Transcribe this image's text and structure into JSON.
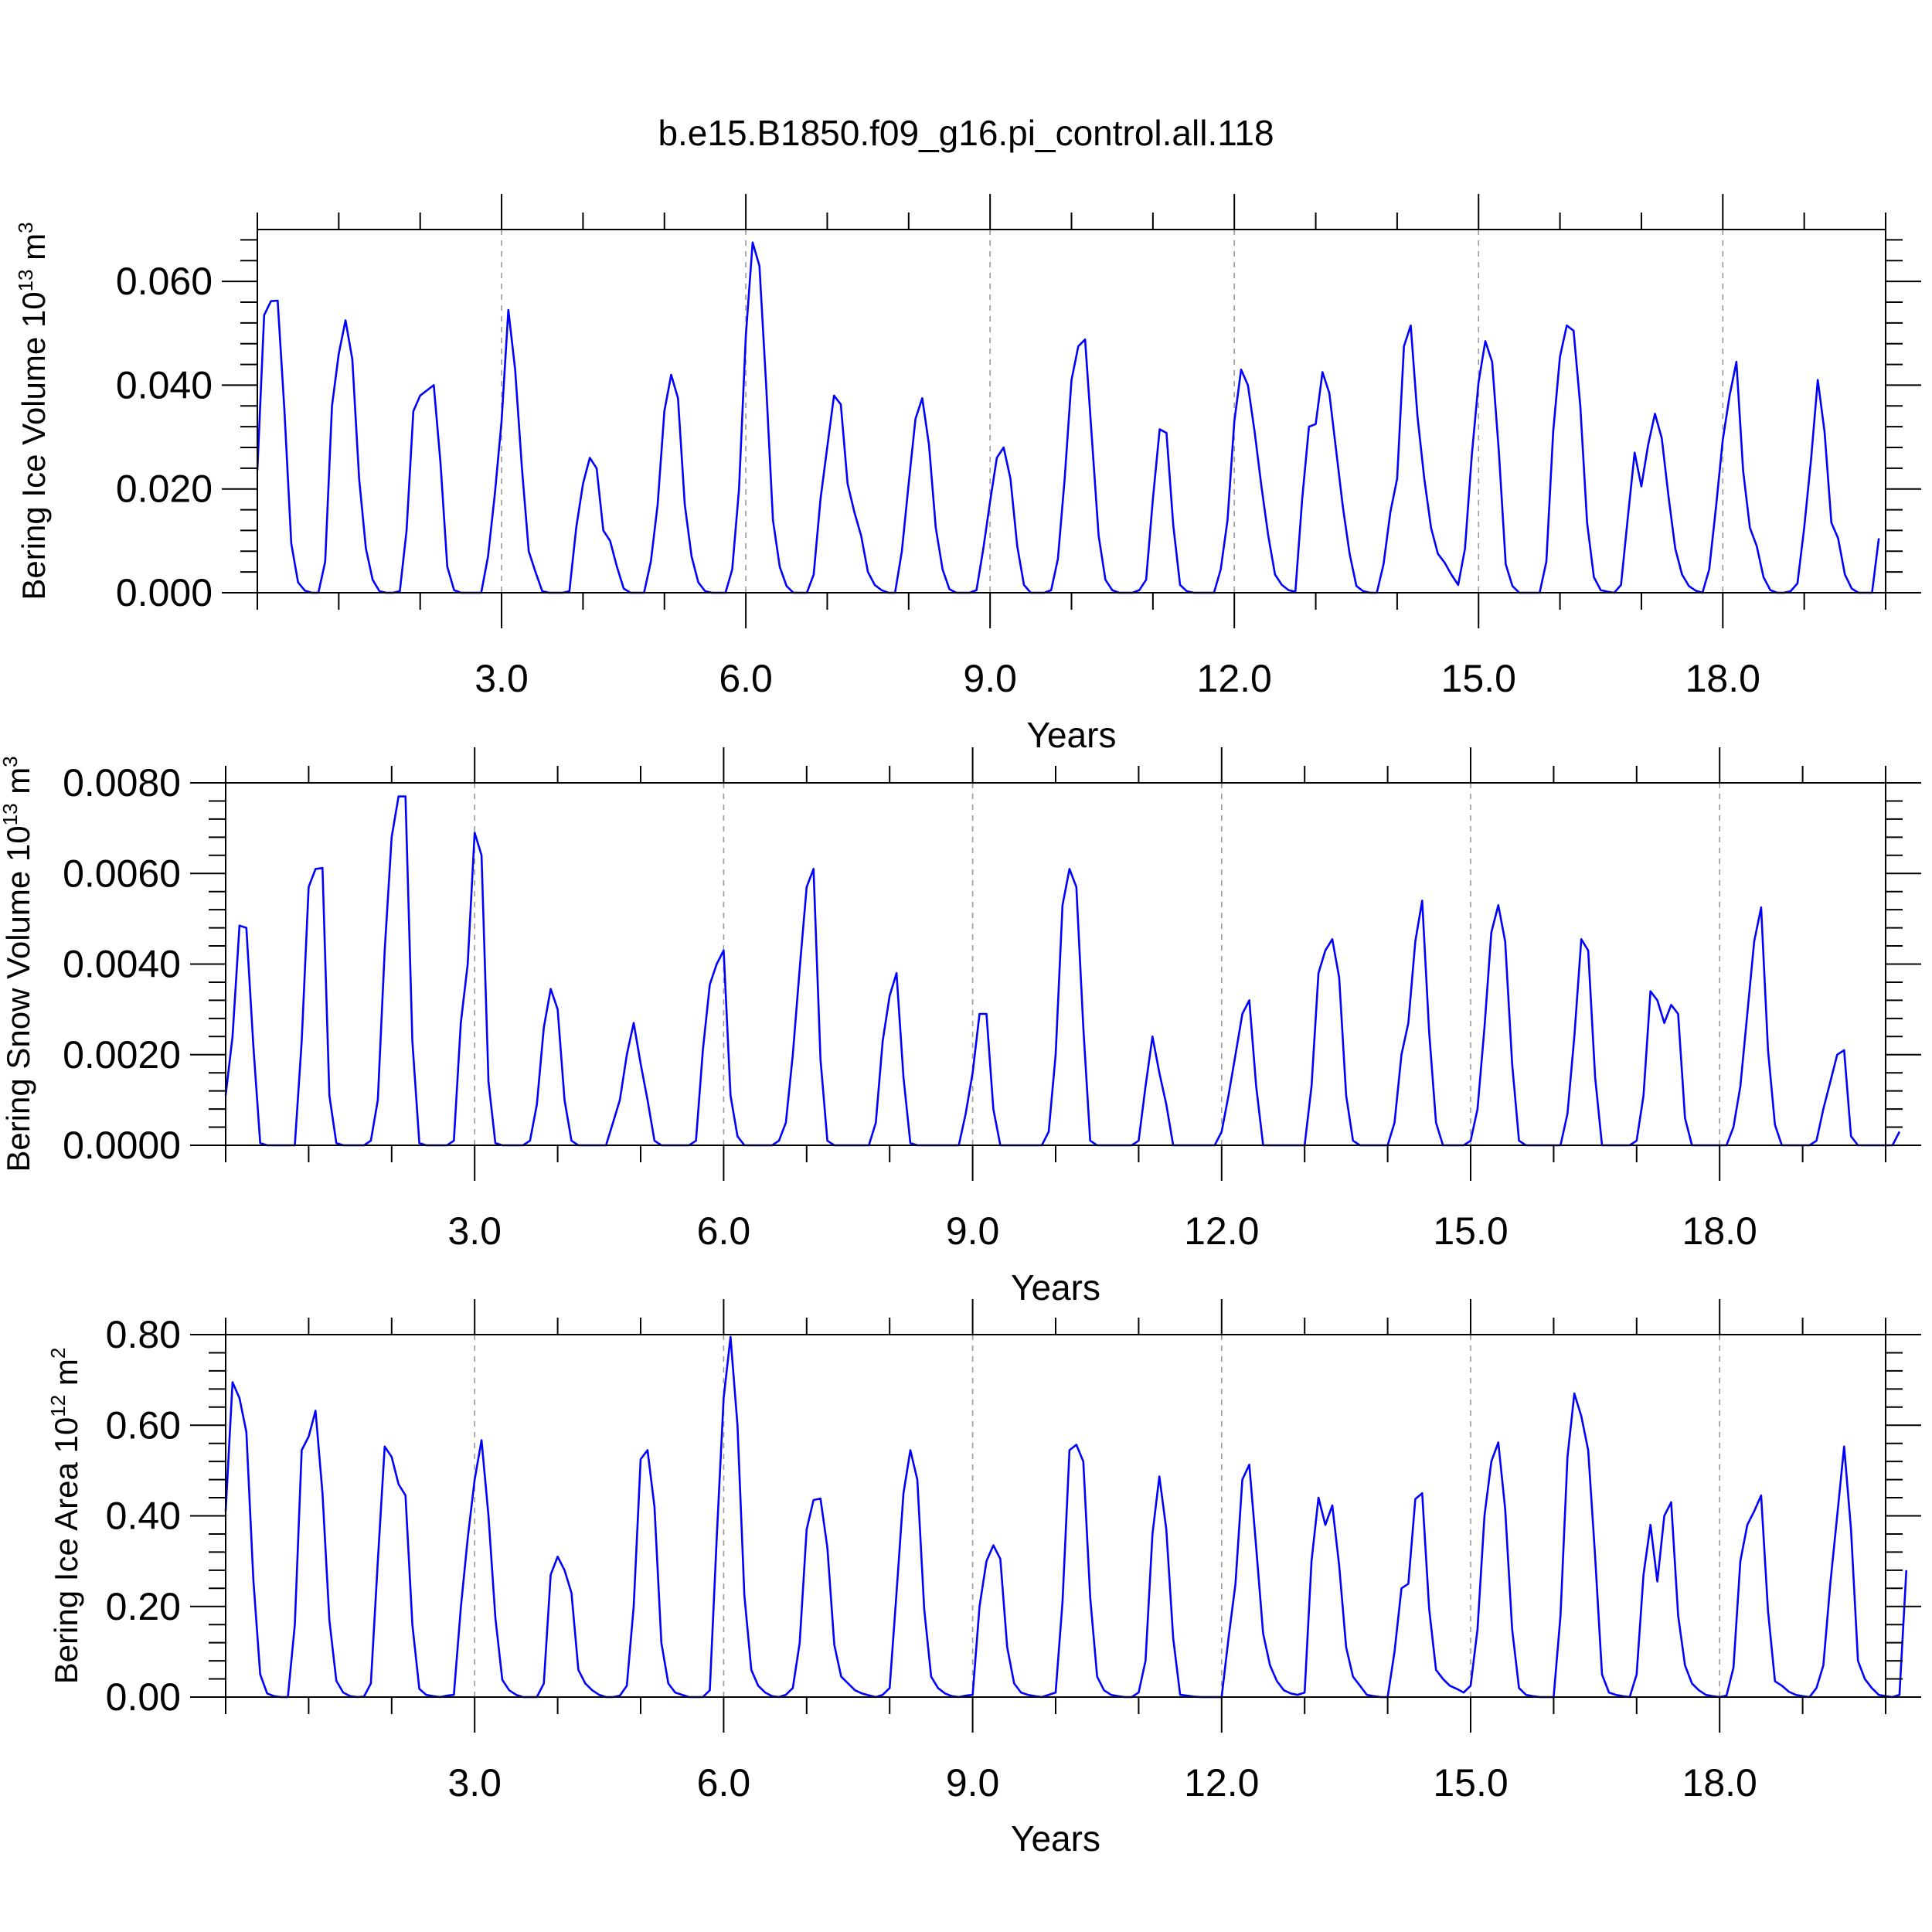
{
  "title": "b.e15.B1850.f09_g16.pi_control.all.118",
  "line_color": "#0000ff",
  "chart_data": [
    {
      "type": "line",
      "ylabel": {
        "main": "Bering Ice Volume 10",
        "exp": "13",
        "unit": " m",
        "unit_exp": "3"
      },
      "xlabel": "Years",
      "xlim": [
        0,
        20
      ],
      "ylim": [
        0,
        0.07
      ],
      "xticks": [
        3,
        6,
        9,
        12,
        15,
        18
      ],
      "xtick_labels": [
        "3.0",
        "6.0",
        "9.0",
        "12.0",
        "15.0",
        "18.0"
      ],
      "yticks": [
        0,
        0.02,
        0.04,
        0.06
      ],
      "ytick_labels": [
        "0.000",
        "0.020",
        "0.040",
        "0.060"
      ],
      "grid": "vertical dashed at major x ticks",
      "series": [
        {
          "x_start": 0,
          "x_step": 0.0833333,
          "values": [
            0.0235,
            0.0535,
            0.0562,
            0.0563,
            0.035,
            0.0095,
            0.002,
            0.0004,
            0.0,
            0.0,
            0.006,
            0.036,
            0.046,
            0.0525,
            0.045,
            0.022,
            0.0085,
            0.0025,
            0.0003,
            0.0,
            0.0,
            0.0003,
            0.012,
            0.035,
            0.038,
            0.039,
            0.04,
            0.025,
            0.005,
            0.0005,
            0.0,
            0.0,
            0.0,
            0.0,
            0.007,
            0.019,
            0.033,
            0.0545,
            0.043,
            0.024,
            0.008,
            0.004,
            0.0003,
            0.0,
            0.0,
            0.0,
            0.0003,
            0.0125,
            0.021,
            0.026,
            0.024,
            0.012,
            0.01,
            0.005,
            0.0008,
            0.0,
            0.0,
            0.0,
            0.006,
            0.017,
            0.035,
            0.042,
            0.0375,
            0.017,
            0.007,
            0.002,
            0.0003,
            0.0,
            0.0,
            0.0,
            0.0045,
            0.02,
            0.0495,
            0.0675,
            0.063,
            0.04,
            0.014,
            0.005,
            0.0013,
            0.0,
            0.0,
            0.0,
            0.0035,
            0.018,
            0.028,
            0.038,
            0.0363,
            0.021,
            0.0155,
            0.011,
            0.004,
            0.0015,
            0.0005,
            0.0,
            0.0,
            0.008,
            0.021,
            0.0335,
            0.0375,
            0.0285,
            0.0125,
            0.0045,
            0.0007,
            0.0,
            0.0,
            0.0,
            0.0005,
            0.0085,
            0.0175,
            0.026,
            0.028,
            0.022,
            0.009,
            0.0015,
            0.0,
            0.0,
            0.0,
            0.0005,
            0.0065,
            0.022,
            0.041,
            0.0475,
            0.0488,
            0.03,
            0.011,
            0.0025,
            0.0005,
            0.0,
            0.0,
            0.0,
            0.0005,
            0.0025,
            0.018,
            0.0315,
            0.0308,
            0.013,
            0.0015,
            0.0003,
            0.0,
            0.0,
            0.0,
            0.0,
            0.0045,
            0.014,
            0.033,
            0.043,
            0.04,
            0.031,
            0.0205,
            0.011,
            0.0035,
            0.0015,
            0.0005,
            0.0002,
            0.018,
            0.032,
            0.0325,
            0.0425,
            0.0385,
            0.0275,
            0.0165,
            0.0075,
            0.0013,
            0.0003,
            0.0,
            0.0,
            0.0055,
            0.0155,
            0.022,
            0.0475,
            0.0515,
            0.034,
            0.022,
            0.0125,
            0.0075,
            0.0058,
            0.0035,
            0.0015,
            0.0085,
            0.0265,
            0.0405,
            0.0485,
            0.0445,
            0.027,
            0.0055,
            0.0013,
            0.0,
            0.0,
            0.0,
            0.0,
            0.006,
            0.031,
            0.0455,
            0.0515,
            0.0505,
            0.036,
            0.0135,
            0.003,
            0.0005,
            0.0002,
            0.0,
            0.0015,
            0.0145,
            0.027,
            0.0205,
            0.0285,
            0.0345,
            0.0298,
            0.0185,
            0.0085,
            0.0035,
            0.0013,
            0.0004,
            0.0,
            0.0045,
            0.0165,
            0.0295,
            0.038,
            0.0445,
            0.0235,
            0.0125,
            0.009,
            0.003,
            0.0005,
            0.0,
            0.0,
            0.0003,
            0.0018,
            0.0125,
            0.0255,
            0.041,
            0.031,
            0.0135,
            0.0105,
            0.0035,
            0.0008,
            0.0,
            0.0,
            0.0,
            0.0105
          ]
        }
      ]
    },
    {
      "type": "line",
      "ylabel": {
        "main": "Bering Snow Volume 10",
        "exp": "13",
        "unit": " m",
        "unit_exp": "3"
      },
      "xlabel": "Years",
      "xlim": [
        0,
        20
      ],
      "ylim": [
        0,
        0.008
      ],
      "xticks": [
        3,
        6,
        9,
        12,
        15,
        18
      ],
      "xtick_labels": [
        "3.0",
        "6.0",
        "9.0",
        "12.0",
        "15.0",
        "18.0"
      ],
      "yticks": [
        0,
        0.002,
        0.004,
        0.006,
        0.008
      ],
      "ytick_labels": [
        "0.0000",
        "0.0020",
        "0.0040",
        "0.0060",
        "0.0080"
      ],
      "grid": "vertical dashed at major x ticks",
      "series": [
        {
          "x_start": 0,
          "x_step": 0.0833333,
          "values": [
            0.0011,
            0.0024,
            0.00485,
            0.0048,
            0.0022,
            5e-05,
            0.0,
            0.0,
            0.0,
            0.0,
            0.0,
            0.0023,
            0.0057,
            0.0061,
            0.00612,
            0.0011,
            5e-05,
            0.0,
            0.0,
            0.0,
            0.0,
            0.0001,
            0.001,
            0.0043,
            0.0068,
            0.0077,
            0.0077,
            0.0023,
            5e-05,
            0.0,
            0.0,
            0.0,
            0.0,
            0.0001,
            0.0027,
            0.004,
            0.0069,
            0.0064,
            0.0014,
            5e-05,
            0.0,
            0.0,
            0.0,
            0.0,
            0.0001,
            0.0009,
            0.0026,
            0.00345,
            0.003,
            0.001,
            0.0001,
            0.0,
            0.0,
            0.0,
            0.0,
            0.0,
            0.0005,
            0.001,
            0.002,
            0.0027,
            0.0018,
            0.001,
            0.0001,
            0.0,
            0.0,
            0.0,
            0.0,
            0.0,
            0.0001,
            0.0021,
            0.00355,
            0.004,
            0.0043,
            0.0011,
            0.0002,
            0.0,
            0.0,
            0.0,
            0.0,
            0.0,
            0.0001,
            0.0005,
            0.002,
            0.0039,
            0.0057,
            0.0061,
            0.0019,
            0.0001,
            0.0,
            0.0,
            0.0,
            0.0,
            0.0,
            0.0,
            0.0005,
            0.0023,
            0.0033,
            0.0038,
            0.0015,
            5e-05,
            0.0,
            0.0,
            0.0,
            0.0,
            0.0,
            0.0,
            0.0,
            0.0007,
            0.0016,
            0.0029,
            0.0029,
            0.0008,
            0.0,
            0.0,
            0.0,
            0.0,
            0.0,
            0.0,
            0.0,
            0.0003,
            0.002,
            0.0053,
            0.0061,
            0.0057,
            0.0026,
            0.0001,
            0.0,
            0.0,
            0.0,
            0.0,
            0.0,
            0.0,
            0.0001,
            0.0013,
            0.0024,
            0.0016,
            0.0009,
            0.0,
            0.0,
            0.0,
            0.0,
            0.0,
            0.0,
            0.0,
            0.0003,
            0.0011,
            0.002,
            0.0029,
            0.0032,
            0.0013,
            0.0,
            0.0,
            0.0,
            0.0,
            0.0,
            0.0,
            0.0,
            0.0013,
            0.0038,
            0.0043,
            0.00455,
            0.0037,
            0.0011,
            0.0001,
            0.0,
            0.0,
            0.0,
            0.0,
            0.0,
            0.0005,
            0.002,
            0.0027,
            0.0045,
            0.0054,
            0.0025,
            0.0005,
            0.0,
            0.0,
            0.0,
            0.0,
            0.0001,
            0.0008,
            0.0026,
            0.0047,
            0.0053,
            0.0045,
            0.0018,
            0.0001,
            0.0,
            0.0,
            0.0,
            0.0,
            0.0,
            0.0,
            0.0007,
            0.0024,
            0.00455,
            0.0043,
            0.0015,
            0.0,
            0.0,
            0.0,
            0.0,
            0.0,
            0.0001,
            0.0011,
            0.0034,
            0.0032,
            0.0027,
            0.0031,
            0.0029,
            0.0006,
            0.0,
            0.0,
            0.0,
            0.0,
            0.0,
            0.0,
            0.0004,
            0.0013,
            0.0029,
            0.0045,
            0.00525,
            0.0021,
            0.00045,
            0.0,
            0.0,
            0.0,
            0.0,
            0.0,
            0.0001,
            0.0008,
            0.0014,
            0.002,
            0.0021,
            0.0002,
            0.0,
            0.0,
            0.0,
            0.0,
            0.0,
            0.0,
            0.0003
          ]
        }
      ]
    },
    {
      "type": "line",
      "ylabel": {
        "main": "Bering Ice Area 10",
        "exp": "12",
        "unit": " m",
        "unit_exp": "2"
      },
      "xlabel": "Years",
      "xlim": [
        0,
        20
      ],
      "ylim": [
        0,
        0.8
      ],
      "xticks": [
        3,
        6,
        9,
        12,
        15,
        18
      ],
      "xtick_labels": [
        "3.0",
        "6.0",
        "9.0",
        "12.0",
        "15.0",
        "18.0"
      ],
      "yticks": [
        0,
        0.2,
        0.4,
        0.6,
        0.8
      ],
      "ytick_labels": [
        "0.00",
        "0.20",
        "0.40",
        "0.60",
        "0.80"
      ],
      "grid": "vertical dashed at major x ticks",
      "series": [
        {
          "x_start": 0,
          "x_step": 0.0833333,
          "values": [
            0.41,
            0.695,
            0.66,
            0.585,
            0.26,
            0.05,
            0.008,
            0.002,
            0.0,
            0.0,
            0.16,
            0.545,
            0.575,
            0.632,
            0.45,
            0.17,
            0.036,
            0.01,
            0.002,
            0.0,
            0.001,
            0.03,
            0.3,
            0.553,
            0.53,
            0.47,
            0.445,
            0.16,
            0.018,
            0.005,
            0.002,
            0.0,
            0.003,
            0.005,
            0.197,
            0.35,
            0.48,
            0.567,
            0.4,
            0.175,
            0.038,
            0.015,
            0.005,
            0.0,
            0.0,
            0.0,
            0.03,
            0.27,
            0.31,
            0.28,
            0.23,
            0.06,
            0.03,
            0.015,
            0.005,
            0.0,
            0.0,
            0.003,
            0.025,
            0.2,
            0.525,
            0.545,
            0.42,
            0.12,
            0.03,
            0.01,
            0.005,
            0.0,
            0.0,
            0.0,
            0.015,
            0.35,
            0.66,
            0.795,
            0.6,
            0.225,
            0.06,
            0.025,
            0.01,
            0.002,
            0.0,
            0.005,
            0.02,
            0.12,
            0.37,
            0.435,
            0.438,
            0.33,
            0.115,
            0.045,
            0.03,
            0.015,
            0.008,
            0.004,
            0.0,
            0.005,
            0.02,
            0.23,
            0.45,
            0.545,
            0.48,
            0.195,
            0.045,
            0.02,
            0.008,
            0.002,
            0.0,
            0.003,
            0.005,
            0.2,
            0.3,
            0.335,
            0.305,
            0.11,
            0.03,
            0.01,
            0.005,
            0.002,
            0.0,
            0.005,
            0.01,
            0.21,
            0.545,
            0.557,
            0.52,
            0.22,
            0.045,
            0.015,
            0.005,
            0.002,
            0.0,
            0.0,
            0.01,
            0.08,
            0.36,
            0.487,
            0.37,
            0.13,
            0.005,
            0.003,
            0.001,
            0.0,
            0.0,
            0.0,
            0.0,
            0.13,
            0.25,
            0.48,
            0.513,
            0.33,
            0.14,
            0.07,
            0.035,
            0.015,
            0.008,
            0.005,
            0.01,
            0.3,
            0.44,
            0.38,
            0.423,
            0.29,
            0.11,
            0.045,
            0.025,
            0.005,
            0.002,
            0.0,
            0.0,
            0.1,
            0.24,
            0.25,
            0.437,
            0.45,
            0.195,
            0.06,
            0.04,
            0.025,
            0.018,
            0.01,
            0.025,
            0.15,
            0.4,
            0.52,
            0.562,
            0.415,
            0.15,
            0.02,
            0.005,
            0.002,
            0.0,
            0.0,
            0.0,
            0.18,
            0.53,
            0.67,
            0.62,
            0.545,
            0.31,
            0.05,
            0.01,
            0.005,
            0.002,
            0.0,
            0.05,
            0.27,
            0.38,
            0.255,
            0.4,
            0.43,
            0.18,
            0.07,
            0.03,
            0.015,
            0.005,
            0.002,
            0.0,
            0.003,
            0.065,
            0.3,
            0.38,
            0.41,
            0.445,
            0.19,
            0.035,
            0.025,
            0.012,
            0.005,
            0.002,
            0.0,
            0.02,
            0.07,
            0.25,
            0.4,
            0.553,
            0.37,
            0.08,
            0.04,
            0.02,
            0.005,
            0.002,
            0.0,
            0.005,
            0.28
          ]
        }
      ]
    }
  ]
}
